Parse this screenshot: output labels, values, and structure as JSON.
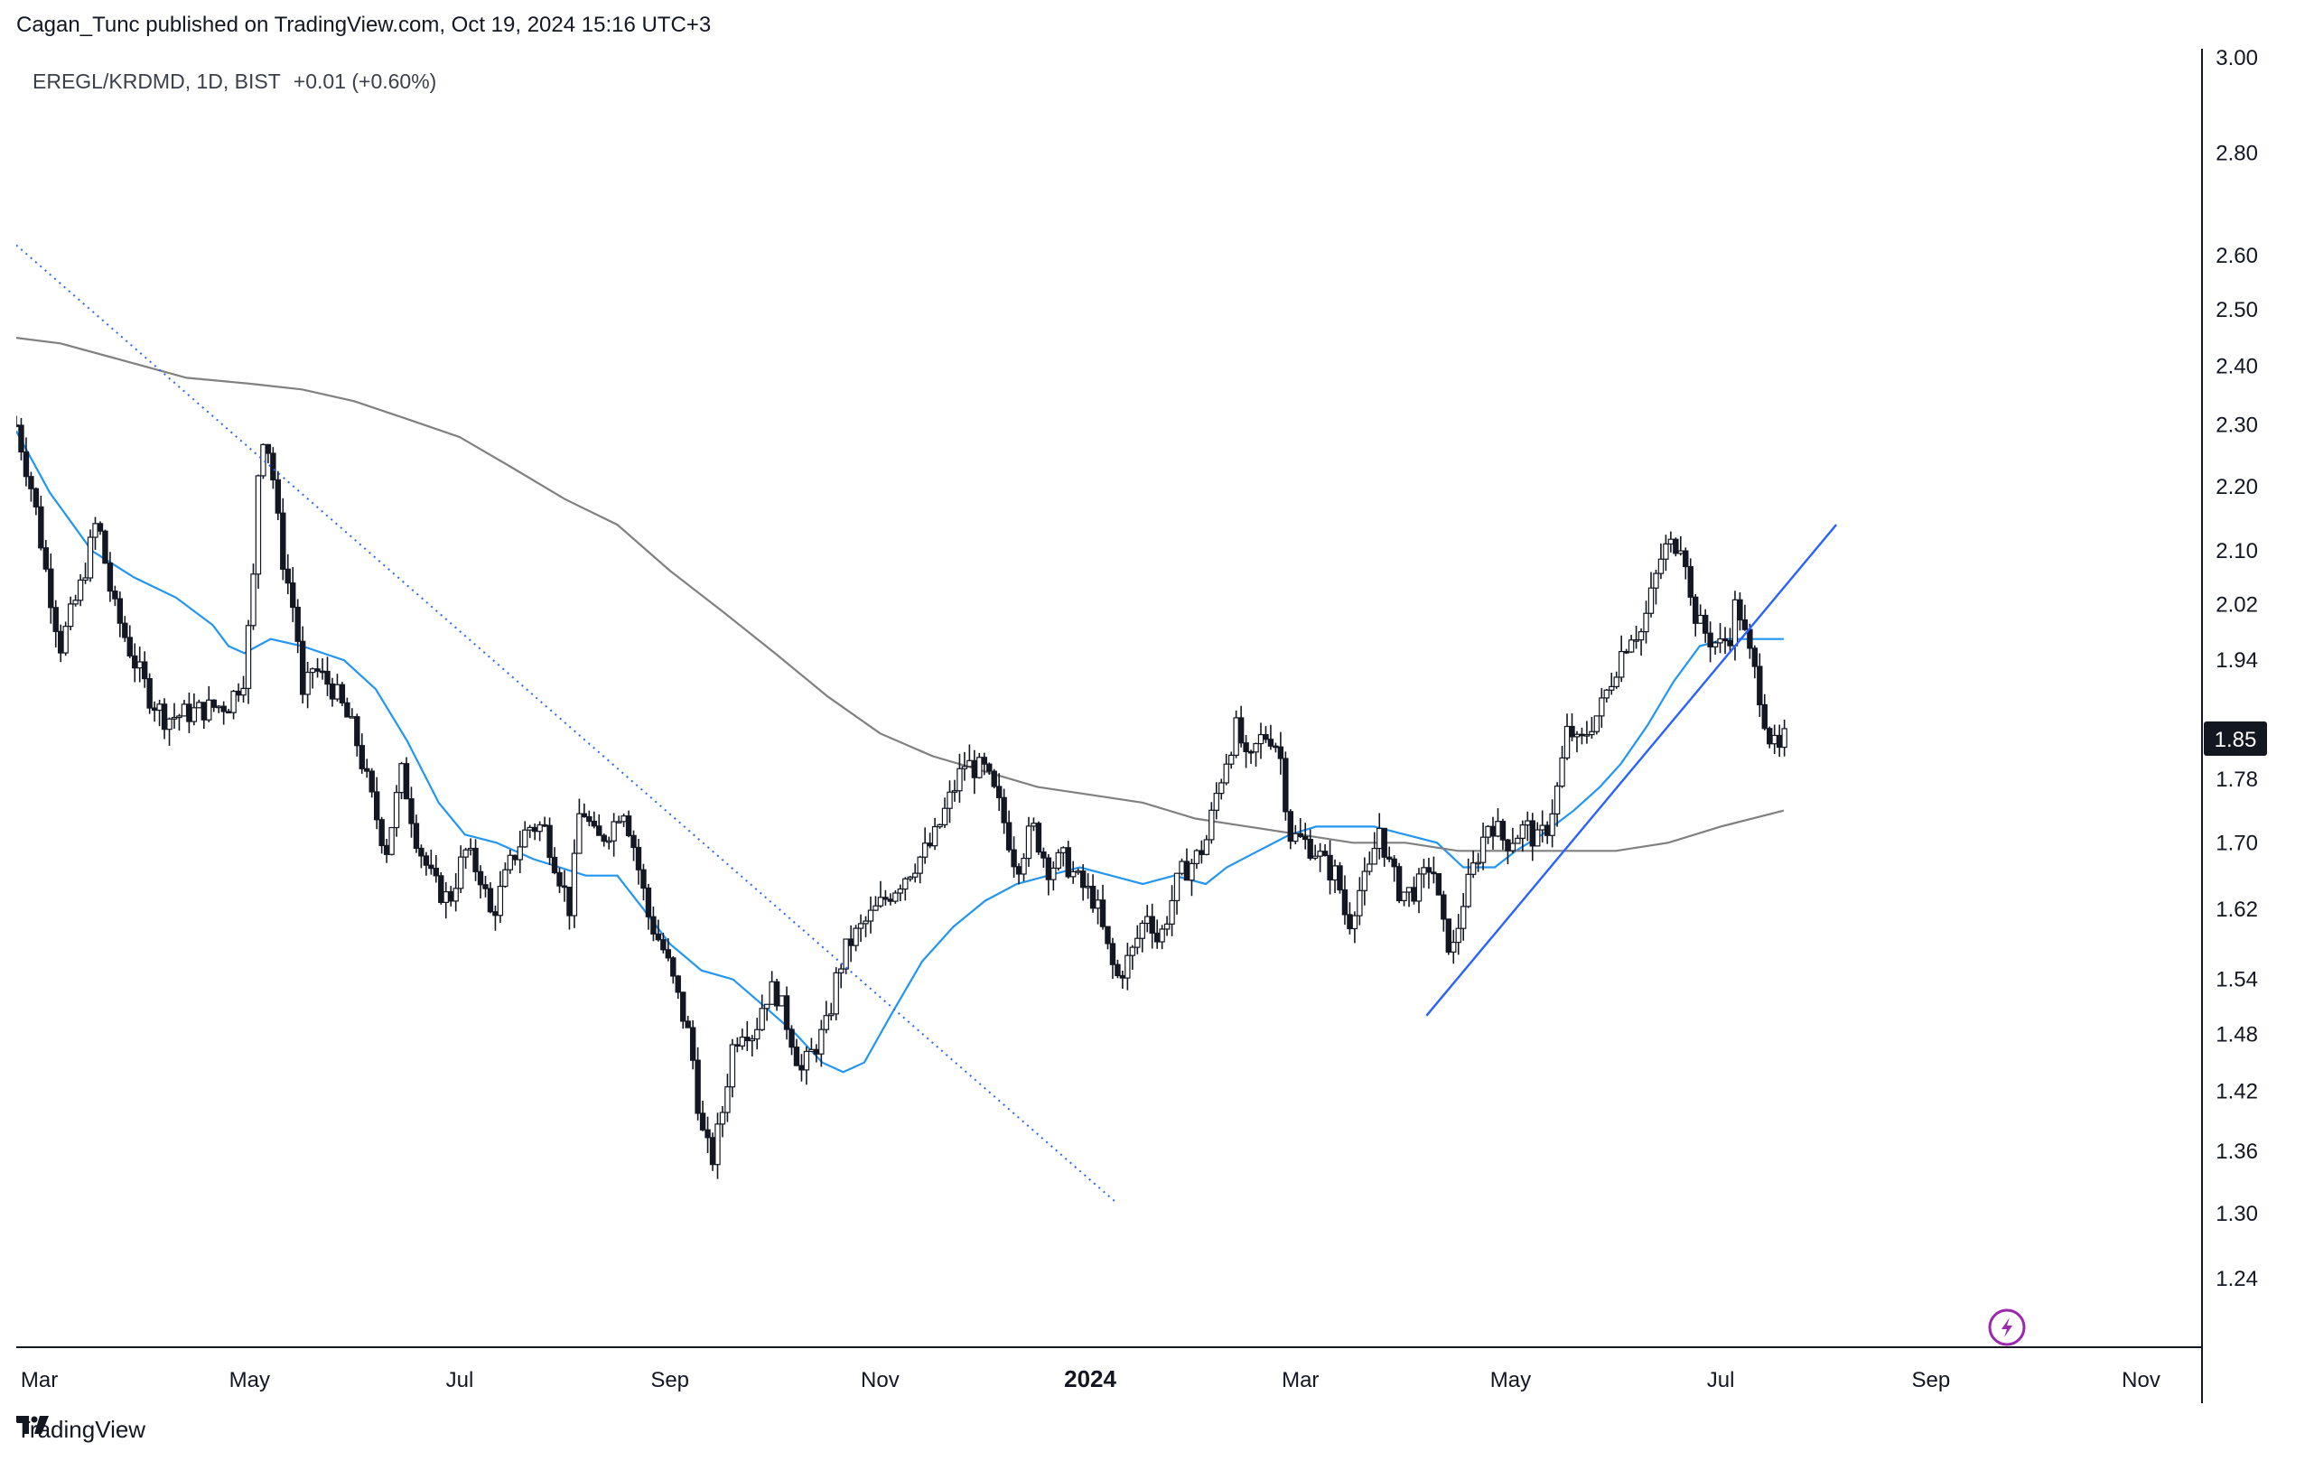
{
  "header": {
    "author": "Cagan_Tunc",
    "published_text": "published on TradingView.com, Oct 19, 2024 15:16 UTC+3"
  },
  "footer": {
    "brand": "TradingView"
  },
  "chart_data": {
    "type": "candlestick",
    "title": "EREGL/KRDMD, 1D, BIST",
    "change": "+0.01 (+0.60%)",
    "last_price": "1.85",
    "scale": "log",
    "ylim": [
      1.18,
      3.02
    ],
    "y_ticks": [
      "3.00",
      "2.80",
      "2.60",
      "2.50",
      "2.40",
      "2.30",
      "2.20",
      "2.10",
      "2.02",
      "1.94",
      "1.78",
      "1.70",
      "1.62",
      "1.54",
      "1.48",
      "1.42",
      "1.36",
      "1.30",
      "1.24"
    ],
    "x_ticks": [
      {
        "label": "Mar",
        "month": 2,
        "bold": false
      },
      {
        "label": "May",
        "month": 4,
        "bold": false
      },
      {
        "label": "Jul",
        "month": 6,
        "bold": false
      },
      {
        "label": "Sep",
        "month": 8,
        "bold": false
      },
      {
        "label": "Nov",
        "month": 10,
        "bold": false
      },
      {
        "label": "2024",
        "month": 12,
        "bold": true
      },
      {
        "label": "Mar",
        "month": 14,
        "bold": false
      },
      {
        "label": "May",
        "month": 16,
        "bold": false
      },
      {
        "label": "Jul",
        "month": 18,
        "bold": false
      },
      {
        "label": "Sep",
        "month": 20,
        "bold": false
      },
      {
        "label": "Nov",
        "month": 22,
        "bold": false
      }
    ],
    "x_range_months": [
      1.78,
      22.58
    ],
    "price_path": [
      [
        1.78,
        2.3
      ],
      [
        1.95,
        2.18
      ],
      [
        2.05,
        2.08
      ],
      [
        2.2,
        1.96
      ],
      [
        2.4,
        2.05
      ],
      [
        2.55,
        2.15
      ],
      [
        2.7,
        2.02
      ],
      [
        2.9,
        1.94
      ],
      [
        3.05,
        1.89
      ],
      [
        3.2,
        1.86
      ],
      [
        3.5,
        1.87
      ],
      [
        3.8,
        1.88
      ],
      [
        3.95,
        1.92
      ],
      [
        4.05,
        2.08
      ],
      [
        4.1,
        2.3
      ],
      [
        4.2,
        2.25
      ],
      [
        4.3,
        2.1
      ],
      [
        4.45,
        1.99
      ],
      [
        4.5,
        1.88
      ],
      [
        4.6,
        1.93
      ],
      [
        4.8,
        1.9
      ],
      [
        5.0,
        1.84
      ],
      [
        5.15,
        1.76
      ],
      [
        5.3,
        1.69
      ],
      [
        5.45,
        1.79
      ],
      [
        5.6,
        1.7
      ],
      [
        5.75,
        1.65
      ],
      [
        5.9,
        1.63
      ],
      [
        6.05,
        1.69
      ],
      [
        6.2,
        1.66
      ],
      [
        6.3,
        1.61
      ],
      [
        6.5,
        1.68
      ],
      [
        6.65,
        1.72
      ],
      [
        6.8,
        1.72
      ],
      [
        6.95,
        1.66
      ],
      [
        7.05,
        1.62
      ],
      [
        7.15,
        1.75
      ],
      [
        7.3,
        1.7
      ],
      [
        7.45,
        1.72
      ],
      [
        7.55,
        1.75
      ],
      [
        7.65,
        1.7
      ],
      [
        7.8,
        1.61
      ],
      [
        7.95,
        1.57
      ],
      [
        8.1,
        1.51
      ],
      [
        8.2,
        1.47
      ],
      [
        8.3,
        1.38
      ],
      [
        8.4,
        1.35
      ],
      [
        8.5,
        1.4
      ],
      [
        8.6,
        1.47
      ],
      [
        8.7,
        1.49
      ],
      [
        8.8,
        1.48
      ],
      [
        8.9,
        1.52
      ],
      [
        9.0,
        1.53
      ],
      [
        9.15,
        1.48
      ],
      [
        9.25,
        1.44
      ],
      [
        9.4,
        1.47
      ],
      [
        9.5,
        1.49
      ],
      [
        9.6,
        1.55
      ],
      [
        9.7,
        1.58
      ],
      [
        9.9,
        1.61
      ],
      [
        10.1,
        1.64
      ],
      [
        10.3,
        1.67
      ],
      [
        10.5,
        1.7
      ],
      [
        10.65,
        1.75
      ],
      [
        10.8,
        1.8
      ],
      [
        11.0,
        1.79
      ],
      [
        11.15,
        1.74
      ],
      [
        11.3,
        1.67
      ],
      [
        11.45,
        1.72
      ],
      [
        11.6,
        1.67
      ],
      [
        11.75,
        1.68
      ],
      [
        11.9,
        1.65
      ],
      [
        12.05,
        1.63
      ],
      [
        12.15,
        1.58
      ],
      [
        12.25,
        1.54
      ],
      [
        12.4,
        1.57
      ],
      [
        12.55,
        1.62
      ],
      [
        12.65,
        1.58
      ],
      [
        12.75,
        1.62
      ],
      [
        12.85,
        1.66
      ],
      [
        13.0,
        1.68
      ],
      [
        13.1,
        1.7
      ],
      [
        13.2,
        1.76
      ],
      [
        13.3,
        1.81
      ],
      [
        13.4,
        1.85
      ],
      [
        13.5,
        1.79
      ],
      [
        13.6,
        1.83
      ],
      [
        13.7,
        1.84
      ],
      [
        13.8,
        1.82
      ],
      [
        13.9,
        1.71
      ],
      [
        14.05,
        1.7
      ],
      [
        14.15,
        1.69
      ],
      [
        14.25,
        1.67
      ],
      [
        14.35,
        1.66
      ],
      [
        14.45,
        1.6
      ],
      [
        14.55,
        1.64
      ],
      [
        14.65,
        1.66
      ],
      [
        14.75,
        1.72
      ],
      [
        14.85,
        1.67
      ],
      [
        14.95,
        1.64
      ],
      [
        15.05,
        1.64
      ],
      [
        15.15,
        1.65
      ],
      [
        15.25,
        1.68
      ],
      [
        15.35,
        1.6
      ],
      [
        15.45,
        1.57
      ],
      [
        15.55,
        1.63
      ],
      [
        15.65,
        1.67
      ],
      [
        15.8,
        1.73
      ],
      [
        15.95,
        1.7
      ],
      [
        16.05,
        1.71
      ],
      [
        16.15,
        1.72
      ],
      [
        16.25,
        1.7
      ],
      [
        16.35,
        1.72
      ],
      [
        16.45,
        1.77
      ],
      [
        16.55,
        1.85
      ],
      [
        16.65,
        1.82
      ],
      [
        16.75,
        1.85
      ],
      [
        16.85,
        1.87
      ],
      [
        16.95,
        1.91
      ],
      [
        17.05,
        1.95
      ],
      [
        17.15,
        1.98
      ],
      [
        17.25,
        1.98
      ],
      [
        17.35,
        2.04
      ],
      [
        17.45,
        2.1
      ],
      [
        17.55,
        2.11
      ],
      [
        17.65,
        2.12
      ],
      [
        17.7,
        2.03
      ],
      [
        17.8,
        1.99
      ],
      [
        17.9,
        1.97
      ],
      [
        18.0,
        1.96
      ],
      [
        18.1,
        1.98
      ],
      [
        18.15,
        2.03
      ],
      [
        18.25,
        1.96
      ],
      [
        18.35,
        1.91
      ],
      [
        18.45,
        1.84
      ],
      [
        18.55,
        1.81
      ],
      [
        18.65,
        1.85
      ]
    ],
    "series": [
      {
        "name": "Short moving average",
        "color": "#2196f3",
        "points": [
          [
            1.78,
            2.29
          ],
          [
            2.1,
            2.19
          ],
          [
            2.5,
            2.1
          ],
          [
            2.9,
            2.06
          ],
          [
            3.3,
            2.03
          ],
          [
            3.65,
            1.99
          ],
          [
            3.8,
            1.96
          ],
          [
            3.95,
            1.95
          ],
          [
            4.2,
            1.97
          ],
          [
            4.5,
            1.96
          ],
          [
            4.9,
            1.94
          ],
          [
            5.2,
            1.9
          ],
          [
            5.5,
            1.83
          ],
          [
            5.8,
            1.75
          ],
          [
            6.05,
            1.71
          ],
          [
            6.35,
            1.7
          ],
          [
            6.7,
            1.68
          ],
          [
            6.95,
            1.67
          ],
          [
            7.2,
            1.66
          ],
          [
            7.5,
            1.66
          ],
          [
            7.75,
            1.62
          ],
          [
            8.0,
            1.58
          ],
          [
            8.3,
            1.55
          ],
          [
            8.6,
            1.54
          ],
          [
            8.9,
            1.51
          ],
          [
            9.2,
            1.48
          ],
          [
            9.45,
            1.45
          ],
          [
            9.65,
            1.44
          ],
          [
            9.85,
            1.45
          ],
          [
            10.1,
            1.5
          ],
          [
            10.4,
            1.56
          ],
          [
            10.7,
            1.6
          ],
          [
            11.0,
            1.63
          ],
          [
            11.3,
            1.65
          ],
          [
            11.6,
            1.66
          ],
          [
            11.9,
            1.67
          ],
          [
            12.2,
            1.66
          ],
          [
            12.5,
            1.65
          ],
          [
            12.8,
            1.66
          ],
          [
            13.1,
            1.65
          ],
          [
            13.3,
            1.67
          ],
          [
            13.6,
            1.69
          ],
          [
            13.9,
            1.71
          ],
          [
            14.15,
            1.72
          ],
          [
            14.4,
            1.72
          ],
          [
            14.7,
            1.72
          ],
          [
            15.0,
            1.71
          ],
          [
            15.3,
            1.7
          ],
          [
            15.55,
            1.67
          ],
          [
            15.85,
            1.67
          ],
          [
            16.05,
            1.69
          ],
          [
            16.3,
            1.71
          ],
          [
            16.6,
            1.74
          ],
          [
            16.85,
            1.77
          ],
          [
            17.05,
            1.8
          ],
          [
            17.3,
            1.85
          ],
          [
            17.55,
            1.91
          ],
          [
            17.8,
            1.96
          ],
          [
            18.05,
            1.97
          ],
          [
            18.25,
            1.97
          ],
          [
            18.6,
            1.97
          ]
        ]
      },
      {
        "name": "Long moving average",
        "color": "#808080",
        "points": [
          [
            1.78,
            2.45
          ],
          [
            2.2,
            2.44
          ],
          [
            2.8,
            2.41
          ],
          [
            3.4,
            2.38
          ],
          [
            4.0,
            2.37
          ],
          [
            4.5,
            2.36
          ],
          [
            5.0,
            2.34
          ],
          [
            5.5,
            2.31
          ],
          [
            6.0,
            2.28
          ],
          [
            6.5,
            2.23
          ],
          [
            7.0,
            2.18
          ],
          [
            7.5,
            2.14
          ],
          [
            8.0,
            2.07
          ],
          [
            8.5,
            2.01
          ],
          [
            9.0,
            1.95
          ],
          [
            9.5,
            1.89
          ],
          [
            10.0,
            1.84
          ],
          [
            10.5,
            1.81
          ],
          [
            11.0,
            1.79
          ],
          [
            11.5,
            1.77
          ],
          [
            12.0,
            1.76
          ],
          [
            12.5,
            1.75
          ],
          [
            13.0,
            1.73
          ],
          [
            13.5,
            1.72
          ],
          [
            14.0,
            1.71
          ],
          [
            14.5,
            1.7
          ],
          [
            15.0,
            1.7
          ],
          [
            15.5,
            1.69
          ],
          [
            16.0,
            1.69
          ],
          [
            16.5,
            1.69
          ],
          [
            17.0,
            1.69
          ],
          [
            17.5,
            1.7
          ],
          [
            18.0,
            1.72
          ],
          [
            18.6,
            1.74
          ]
        ]
      }
    ],
    "trendlines": [
      {
        "name": "Descending dotted trendline",
        "style": "dotted",
        "color": "#2962ff",
        "from": [
          1.78,
          2.62
        ],
        "to": [
          12.25,
          1.31
        ]
      },
      {
        "name": "Ascending trendline",
        "style": "solid",
        "color": "#2962ff",
        "from": [
          15.2,
          1.5
        ],
        "to": [
          19.1,
          2.14
        ]
      }
    ]
  }
}
